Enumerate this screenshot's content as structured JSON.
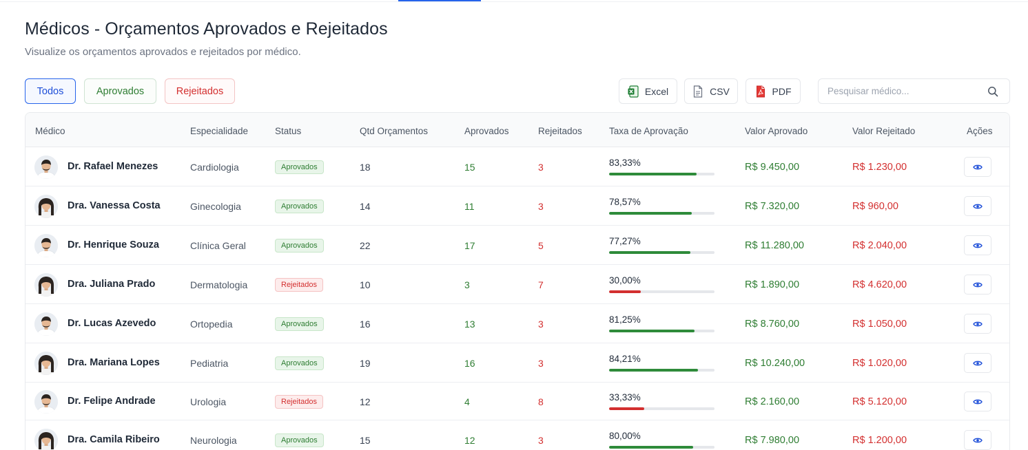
{
  "header": {
    "title": "Médicos - Orçamentos Aprovados e Rejeitados",
    "subtitle": "Visualize os orçamentos aprovados e rejeitados por médico."
  },
  "filters": {
    "todos": "Todos",
    "aprovados": "Aprovados",
    "rejeitados": "Rejeitados",
    "active": "Todos"
  },
  "exports": {
    "excel": "Excel",
    "csv": "CSV",
    "pdf": "PDF"
  },
  "search": {
    "placeholder": "Pesquisar médico...",
    "value": ""
  },
  "colors": {
    "accent": "#2563eb",
    "approved": "#2e7d32",
    "rejected": "#d32f2f"
  },
  "icons": {
    "excel": "excel-file-icon",
    "csv": "csv-file-icon",
    "pdf": "pdf-file-icon",
    "search": "search-icon",
    "view": "eye-icon"
  },
  "table": {
    "columns": {
      "medico": "Médico",
      "especialidade": "Especialidade",
      "status": "Status",
      "qtd": "Qtd Orçamentos",
      "aprovados": "Aprovados",
      "rejeitados": "Rejeitados",
      "taxa": "Taxa de Aprovação",
      "valor_aprovado": "Valor Aprovado",
      "valor_rejeitado": "Valor Rejeitado",
      "acoes": "Ações"
    },
    "rows": [
      {
        "name": "Dr. Rafael Menezes",
        "gender": "m",
        "specialty": "Cardiologia",
        "status": "Aprovados",
        "status_type": "ok",
        "qtd": "18",
        "aprovados": "15",
        "rejeitados": "3",
        "taxa": "83,33%",
        "taxa_value": 83.33,
        "valor_aprovado": "R$ 9.450,00",
        "valor_rejeitado": "R$ 1.230,00"
      },
      {
        "name": "Dra. Vanessa Costa",
        "gender": "f",
        "specialty": "Ginecologia",
        "status": "Aprovados",
        "status_type": "ok",
        "qtd": "14",
        "aprovados": "11",
        "rejeitados": "3",
        "taxa": "78,57%",
        "taxa_value": 78.57,
        "valor_aprovado": "R$ 7.320,00",
        "valor_rejeitado": "R$ 960,00"
      },
      {
        "name": "Dr. Henrique Souza",
        "gender": "m",
        "specialty": "Clínica Geral",
        "status": "Aprovados",
        "status_type": "ok",
        "qtd": "22",
        "aprovados": "17",
        "rejeitados": "5",
        "taxa": "77,27%",
        "taxa_value": 77.27,
        "valor_aprovado": "R$ 11.280,00",
        "valor_rejeitado": "R$ 2.040,00"
      },
      {
        "name": "Dra. Juliana Prado",
        "gender": "f",
        "specialty": "Dermatologia",
        "status": "Rejeitados",
        "status_type": "no",
        "qtd": "10",
        "aprovados": "3",
        "rejeitados": "7",
        "taxa": "30,00%",
        "taxa_value": 30.0,
        "valor_aprovado": "R$ 1.890,00",
        "valor_rejeitado": "R$ 4.620,00"
      },
      {
        "name": "Dr. Lucas Azevedo",
        "gender": "m",
        "specialty": "Ortopedia",
        "status": "Aprovados",
        "status_type": "ok",
        "qtd": "16",
        "aprovados": "13",
        "rejeitados": "3",
        "taxa": "81,25%",
        "taxa_value": 81.25,
        "valor_aprovado": "R$ 8.760,00",
        "valor_rejeitado": "R$ 1.050,00"
      },
      {
        "name": "Dra. Mariana Lopes",
        "gender": "f",
        "specialty": "Pediatria",
        "status": "Aprovados",
        "status_type": "ok",
        "qtd": "19",
        "aprovados": "16",
        "rejeitados": "3",
        "taxa": "84,21%",
        "taxa_value": 84.21,
        "valor_aprovado": "R$ 10.240,00",
        "valor_rejeitado": "R$ 1.020,00"
      },
      {
        "name": "Dr. Felipe Andrade",
        "gender": "m",
        "specialty": "Urologia",
        "status": "Rejeitados",
        "status_type": "no",
        "qtd": "12",
        "aprovados": "4",
        "rejeitados": "8",
        "taxa": "33,33%",
        "taxa_value": 33.33,
        "valor_aprovado": "R$ 2.160,00",
        "valor_rejeitado": "R$ 5.120,00"
      },
      {
        "name": "Dra. Camila Ribeiro",
        "gender": "f",
        "specialty": "Neurologia",
        "status": "Aprovados",
        "status_type": "ok",
        "qtd": "15",
        "aprovados": "12",
        "rejeitados": "3",
        "taxa": "80,00%",
        "taxa_value": 80.0,
        "valor_aprovado": "R$ 7.980,00",
        "valor_rejeitado": "R$ 1.200,00"
      }
    ]
  }
}
